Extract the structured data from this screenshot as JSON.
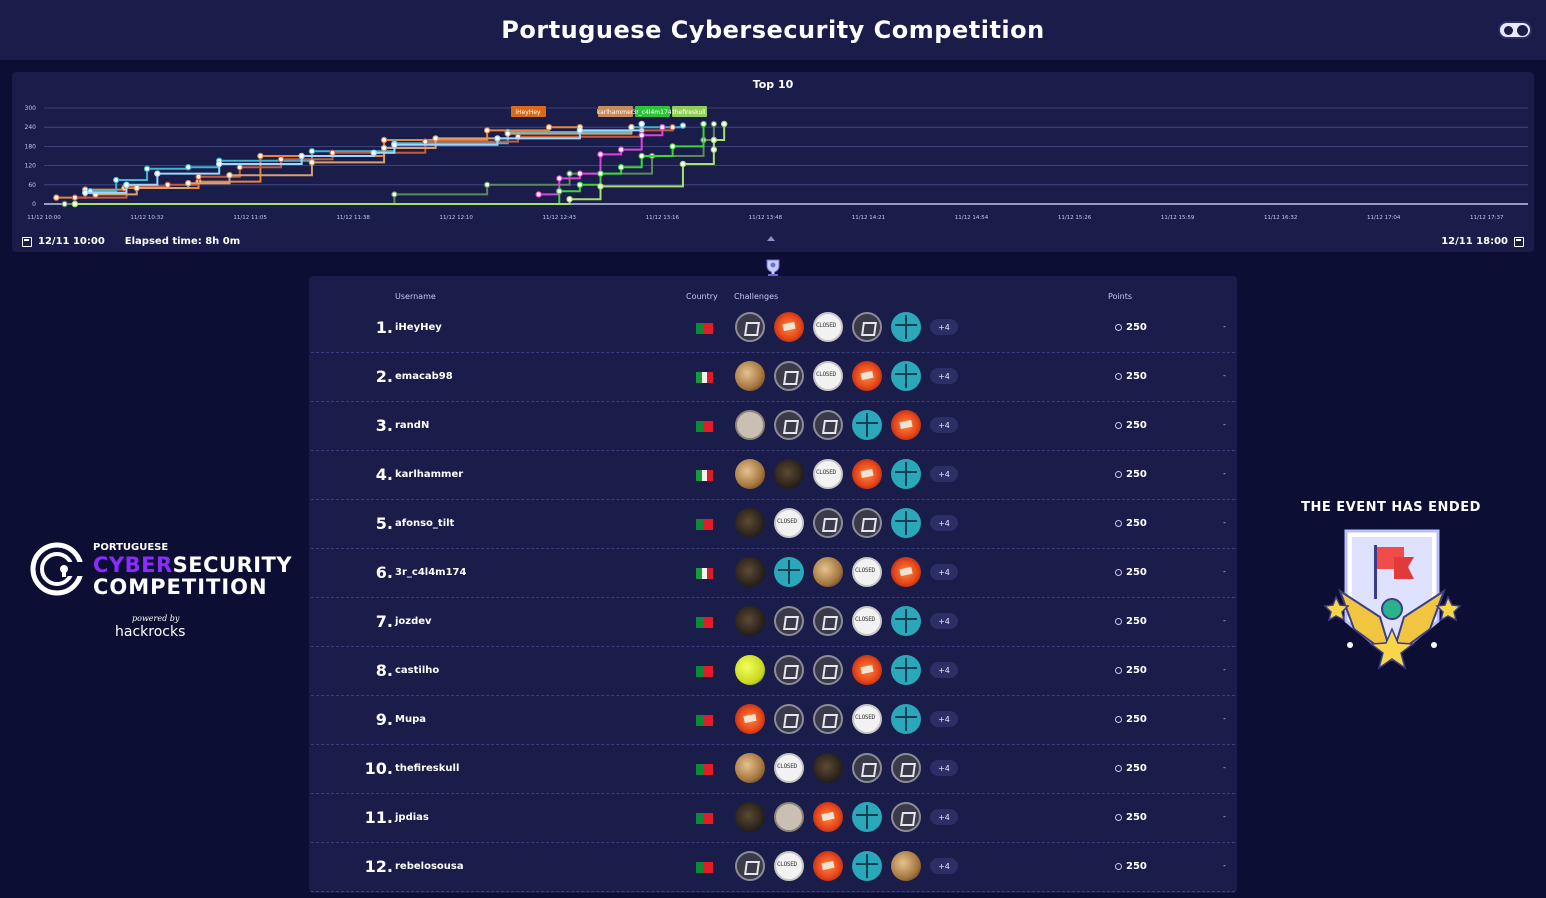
{
  "header": {
    "title": "Portuguese Cybersecurity Competition"
  },
  "chart_data": {
    "type": "line",
    "title": "Top 10",
    "y_ticks": [
      "0",
      "60",
      "120",
      "180",
      "240",
      "300"
    ],
    "ylim": [
      0,
      300
    ],
    "x_ticks": [
      "11/12 10:00",
      "11/12 10:32",
      "11/12 11:05",
      "11/12 11:38",
      "11/12 12:10",
      "11/12 12:43",
      "11/12 13:16",
      "11/12 13:48",
      "11/12 14:21",
      "11/12 14:54",
      "11/12 15:26",
      "11/12 15:59",
      "11/12 16:32",
      "11/12 17:04",
      "11/12 17:37"
    ],
    "flag_labels": [
      "iHeyHey",
      "karlhammer",
      "3r_c4l4m174",
      "thefireskull"
    ],
    "series": [
      {
        "color": "#e8853a",
        "points": [
          [
            0.12,
            20
          ],
          [
            0.4,
            45
          ],
          [
            0.78,
            50
          ],
          [
            1.5,
            70
          ],
          [
            2.1,
            150
          ],
          [
            3.3,
            200
          ],
          [
            4.3,
            230
          ],
          [
            4.9,
            240
          ],
          [
            5.2,
            240
          ]
        ]
      },
      {
        "color": "#3ab6d6",
        "points": [
          [
            0.45,
            40
          ],
          [
            0.7,
            75
          ],
          [
            1.0,
            110
          ],
          [
            1.4,
            115
          ],
          [
            1.7,
            135
          ],
          [
            2.6,
            165
          ],
          [
            3.4,
            190
          ],
          [
            4.5,
            225
          ],
          [
            5.7,
            240
          ],
          [
            6.2,
            245
          ]
        ]
      },
      {
        "color": "#c85a3a",
        "points": [
          [
            0.3,
            20
          ],
          [
            0.8,
            55
          ],
          [
            1.2,
            60
          ],
          [
            1.5,
            85
          ],
          [
            1.9,
            115
          ],
          [
            2.3,
            140
          ],
          [
            2.8,
            160
          ],
          [
            3.7,
            195
          ],
          [
            4.6,
            210
          ],
          [
            5.8,
            230
          ],
          [
            6.1,
            240
          ]
        ]
      },
      {
        "color": "#d8a06e",
        "points": [
          [
            0.5,
            30
          ],
          [
            0.9,
            50
          ],
          [
            1.4,
            65
          ],
          [
            1.8,
            90
          ],
          [
            2.6,
            130
          ],
          [
            3.3,
            175
          ],
          [
            3.8,
            205
          ],
          [
            4.5,
            220
          ],
          [
            5.7,
            240
          ]
        ]
      },
      {
        "color": "#9ad8ff",
        "points": [
          [
            0.4,
            35
          ],
          [
            0.8,
            60
          ],
          [
            1.1,
            95
          ],
          [
            1.7,
            125
          ],
          [
            2.5,
            150
          ],
          [
            3.2,
            160
          ],
          [
            3.4,
            185
          ],
          [
            4.4,
            205
          ],
          [
            5.2,
            230
          ],
          [
            5.8,
            250
          ]
        ]
      },
      {
        "color": "#5c8a5a",
        "points": [
          [
            0.2,
            0
          ],
          [
            3.4,
            30
          ],
          [
            4.3,
            60
          ],
          [
            5.1,
            95
          ],
          [
            5.9,
            150
          ],
          [
            6.4,
            200
          ],
          [
            6.5,
            250
          ]
        ]
      },
      {
        "color": "#e040e0",
        "points": [
          [
            4.8,
            30
          ],
          [
            5.0,
            80
          ],
          [
            5.2,
            95
          ],
          [
            5.4,
            155
          ],
          [
            5.6,
            170
          ],
          [
            5.8,
            215
          ],
          [
            6.0,
            240
          ]
        ]
      },
      {
        "color": "#3ad63a",
        "points": [
          [
            0.3,
            0
          ],
          [
            5.0,
            40
          ],
          [
            5.2,
            60
          ],
          [
            5.4,
            95
          ],
          [
            5.6,
            115
          ],
          [
            5.8,
            150
          ],
          [
            6.1,
            180
          ],
          [
            6.4,
            250
          ]
        ]
      },
      {
        "color": "#a8e06e",
        "points": [
          [
            0.3,
            0
          ],
          [
            5.1,
            15
          ],
          [
            5.4,
            55
          ],
          [
            6.2,
            125
          ],
          [
            6.5,
            170
          ],
          [
            6.5,
            200
          ],
          [
            6.6,
            250
          ]
        ]
      }
    ]
  },
  "chart_footer": {
    "start": "12/11 10:00",
    "elapsed": "Elapsed time: 8h 0m",
    "end": "12/11 18:00"
  },
  "leaderboard": {
    "headers": {
      "username": "Username",
      "country": "Country",
      "challenges": "Challenges",
      "points": "Points"
    },
    "rows": [
      {
        "rank": "1.",
        "username": "iHeyHey",
        "flag": "pt",
        "icons": [
          "terminal",
          "fire",
          "closed",
          "terminal",
          "turq"
        ],
        "more": "+4",
        "points": "250",
        "extra": "-"
      },
      {
        "rank": "2.",
        "username": "emacab98",
        "flag": "it",
        "icons": [
          "sand",
          "terminal",
          "closed",
          "fire",
          "turq"
        ],
        "more": "+4",
        "points": "250",
        "extra": "-"
      },
      {
        "rank": "3.",
        "username": "randN",
        "flag": "pt",
        "icons": [
          "paper",
          "terminal",
          "terminal",
          "turq",
          "fire"
        ],
        "more": "+4",
        "points": "250",
        "extra": "-"
      },
      {
        "rank": "4.",
        "username": "karlhammer",
        "flag": "it",
        "icons": [
          "sand",
          "dark",
          "closed",
          "fire",
          "turq"
        ],
        "more": "+4",
        "points": "250",
        "extra": "-"
      },
      {
        "rank": "5.",
        "username": "afonso_tilt",
        "flag": "pt",
        "icons": [
          "dark",
          "closed",
          "terminal",
          "terminal",
          "turq"
        ],
        "more": "+4",
        "points": "250",
        "extra": "-"
      },
      {
        "rank": "6.",
        "username": "3r_c4l4m174",
        "flag": "it",
        "icons": [
          "dark",
          "turq",
          "sand",
          "closed",
          "fire"
        ],
        "more": "+4",
        "points": "250",
        "extra": "-"
      },
      {
        "rank": "7.",
        "username": "jozdev",
        "flag": "pt",
        "icons": [
          "dark",
          "terminal",
          "terminal",
          "closed",
          "turq"
        ],
        "more": "+4",
        "points": "250",
        "extra": "-"
      },
      {
        "rank": "8.",
        "username": "castilho",
        "flag": "pt",
        "icons": [
          "lime",
          "terminal",
          "terminal",
          "fire",
          "turq"
        ],
        "more": "+4",
        "points": "250",
        "extra": "-"
      },
      {
        "rank": "9.",
        "username": "Mupa",
        "flag": "pt",
        "icons": [
          "fire",
          "terminal",
          "terminal",
          "closed",
          "turq"
        ],
        "more": "+4",
        "points": "250",
        "extra": "-"
      },
      {
        "rank": "10.",
        "username": "thefireskull",
        "flag": "pt",
        "icons": [
          "sand",
          "closed",
          "dark",
          "terminal",
          "terminal"
        ],
        "more": "+4",
        "points": "250",
        "extra": "-"
      },
      {
        "rank": "11.",
        "username": "jpdias",
        "flag": "pt",
        "icons": [
          "dark",
          "paper",
          "fire",
          "turq",
          "terminal"
        ],
        "more": "+4",
        "points": "250",
        "extra": "-"
      },
      {
        "rank": "12.",
        "username": "rebelosousa",
        "flag": "pt",
        "icons": [
          "terminal",
          "closed",
          "fire",
          "turq",
          "sand"
        ],
        "more": "+4",
        "points": "250",
        "extra": "-"
      }
    ]
  },
  "logo": {
    "top": "PORTUGUESE",
    "cyber": "CYBER",
    "security": "SECURITY",
    "competition": "COMPETITION",
    "powered": "powered by",
    "brand": "hackrocks"
  },
  "event": {
    "status": "THE EVENT HAS ENDED"
  },
  "colors": {
    "background": "#0d0e33",
    "panel": "#1a1c4a",
    "accent": "#8a2bff",
    "pt_green": "#0b8a3a",
    "pt_red": "#e11d2a",
    "it_green": "#179a3a",
    "it_white": "#f2f2f2",
    "it_red": "#d81e2a"
  }
}
